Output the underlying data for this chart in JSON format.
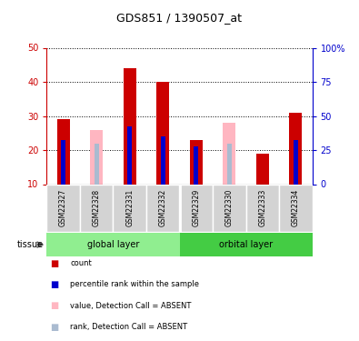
{
  "title": "GDS851 / 1390507_at",
  "samples": [
    "GSM22327",
    "GSM22328",
    "GSM22331",
    "GSM22332",
    "GSM22329",
    "GSM22330",
    "GSM22333",
    "GSM22334"
  ],
  "red_values": [
    29,
    0,
    44,
    40,
    23,
    0,
    19,
    31
  ],
  "blue_values": [
    23,
    0,
    27,
    24,
    21,
    0,
    0,
    23
  ],
  "pink_values": [
    0,
    26,
    0,
    0,
    0,
    28,
    0,
    0
  ],
  "lpink_values": [
    0,
    22,
    0,
    0,
    0,
    22,
    0,
    0
  ],
  "absent": [
    false,
    true,
    false,
    false,
    false,
    true,
    false,
    false
  ],
  "ylim_left": [
    10,
    50
  ],
  "ylim_right": [
    0,
    100
  ],
  "yticks_left": [
    10,
    20,
    30,
    40,
    50
  ],
  "yticks_right": [
    0,
    25,
    50,
    75,
    100
  ],
  "yticklabels_right": [
    "0",
    "25",
    "50",
    "75",
    "100%"
  ],
  "left_tick_color": "#CC0000",
  "right_tick_color": "#0000CC",
  "group_names": [
    "global layer",
    "orbital layer"
  ],
  "group_colors": [
    "#90EE90",
    "#44CC44"
  ],
  "group_ranges": [
    [
      0,
      3
    ],
    [
      4,
      7
    ]
  ],
  "tissue_label": "tissue",
  "legend_colors": [
    "#CC0000",
    "#0000CC",
    "#FFB6C1",
    "#AABBD0"
  ],
  "legend_labels": [
    "count",
    "percentile rank within the sample",
    "value, Detection Call = ABSENT",
    "rank, Detection Call = ABSENT"
  ]
}
